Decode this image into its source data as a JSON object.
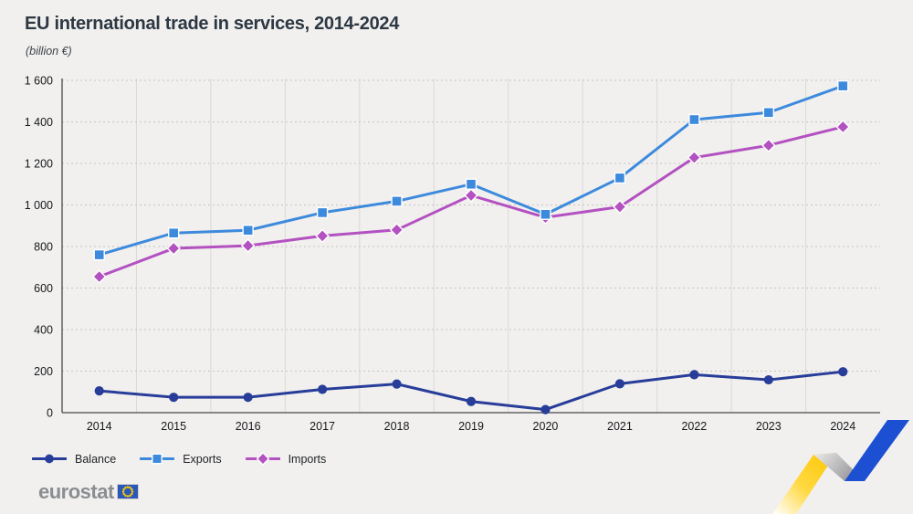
{
  "header": {
    "title": "EU international trade in services, 2014-2024",
    "subtitle": "(billion €)"
  },
  "chart_data": {
    "type": "line",
    "title": "EU international trade in services, 2014-2024",
    "xlabel": "",
    "ylabel": "(billion €)",
    "categories": [
      "2014",
      "2015",
      "2016",
      "2017",
      "2018",
      "2019",
      "2020",
      "2021",
      "2022",
      "2023",
      "2024"
    ],
    "series": [
      {
        "name": "Balance",
        "marker": "circle",
        "color": "#283d99",
        "values": [
          105,
          74,
          74,
          112,
          138,
          54,
          15,
          139,
          183,
          158,
          197
        ]
      },
      {
        "name": "Exports",
        "marker": "square",
        "color": "#3d8add",
        "values": [
          760,
          865,
          878,
          963,
          1018,
          1100,
          955,
          1130,
          1411,
          1445,
          1573
        ]
      },
      {
        "name": "Imports",
        "marker": "diamond",
        "color": "#b351c1",
        "values": [
          655,
          791,
          804,
          851,
          880,
          1046,
          940,
          991,
          1228,
          1287,
          1376
        ]
      }
    ],
    "ylim": [
      0,
      1600
    ],
    "yticks": [
      0,
      200,
      400,
      600,
      800,
      1000,
      1200,
      1400,
      1600
    ],
    "ytick_labels": [
      "0",
      "200",
      "400",
      "600",
      "800",
      "1 000",
      "1 200",
      "1 400",
      "1 600"
    ],
    "grid": "horizontal dashed, vertical solid band separators",
    "legend_position": "bottom-left"
  },
  "footer": {
    "logo_text": "eurostat",
    "flag_icon": "eu-flag-icon"
  },
  "colors": {
    "background": "#f1f0ee",
    "title_text": "#2d3843",
    "axis_line": "#46484b",
    "grid_dashed": "#c7c5c2",
    "grid_vertical": "#dcdad7",
    "tick_text": "#17191c",
    "logo_gray": "#8b8e91",
    "flag_blue": "#2a57ba",
    "star_yellow": "#ffcc00",
    "deco_yellow": "#fdc500",
    "deco_gray": "#a8a8ab",
    "deco_blue": "#1d4fd3"
  }
}
